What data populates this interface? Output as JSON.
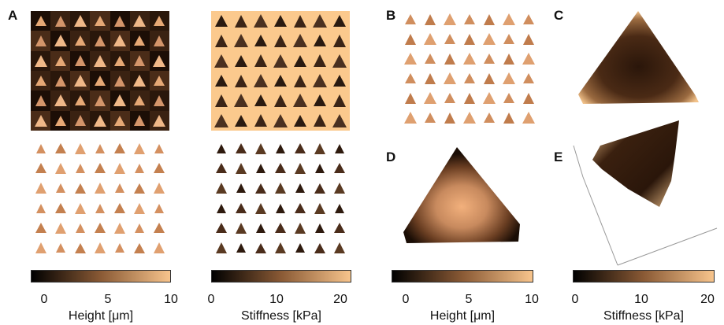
{
  "panels": {
    "A": {
      "label": "A"
    },
    "B": {
      "label": "B"
    },
    "C": {
      "label": "C"
    },
    "D": {
      "label": "D"
    },
    "E": {
      "label": "E"
    }
  },
  "colorbars": [
    {
      "ticks": [
        "0",
        "5",
        "10"
      ],
      "label": "Height [μm]"
    },
    {
      "ticks": [
        "0",
        "10",
        "20"
      ],
      "label": "Stiffness [kPa]"
    },
    {
      "ticks": [
        "0",
        "5",
        "10"
      ],
      "label": "Height [μm]"
    },
    {
      "ticks": [
        "0",
        "10",
        "20"
      ],
      "label": "Stiffness [kPa]"
    }
  ],
  "colors": {
    "dark": "#1a0d05",
    "mid": "#8a5a35",
    "light": "#f7c48c",
    "peach_bg": "#fbc98d"
  }
}
